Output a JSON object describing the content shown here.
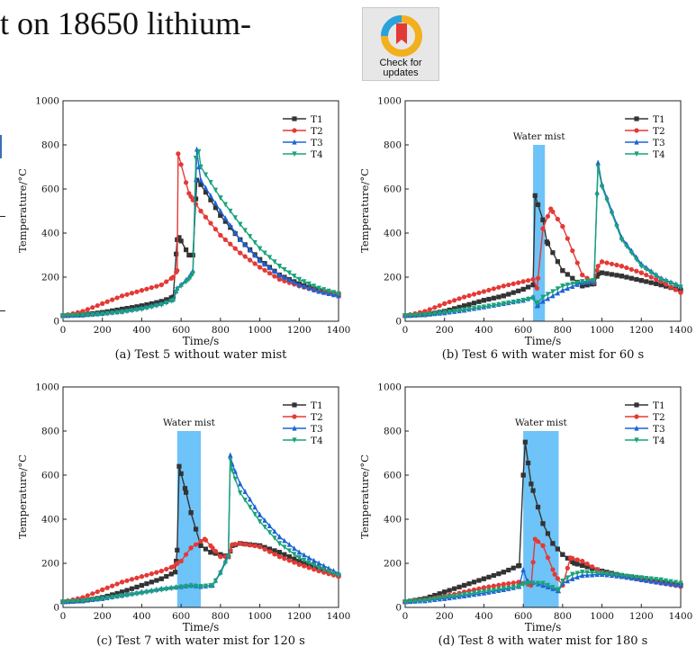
{
  "page": {
    "heading_fragment": "t on 18650 lithium-",
    "badge_line1": "Check for",
    "badge_line2": "updates",
    "left_edge_colors": [
      "#3b6fb6",
      "#222222"
    ]
  },
  "chart_data": [
    {
      "type": "line",
      "caption": "(a) Test 5 without water mist",
      "xlabel": "Time/s",
      "ylabel": "Temperature/°C",
      "xlim": [
        0,
        1400
      ],
      "ylim": [
        0,
        1000
      ],
      "xticks": [
        0,
        200,
        400,
        600,
        800,
        1000,
        1200,
        1400
      ],
      "yticks": [
        0,
        200,
        400,
        600,
        800,
        1000
      ],
      "mist": null,
      "legend": "top-right",
      "series": [
        {
          "name": "T1",
          "color": "#333333",
          "marker": "square",
          "x": [
            0,
            100,
            200,
            300,
            400,
            500,
            560,
            580,
            590,
            640,
            660,
            680,
            700,
            800,
            900,
            1000,
            1100,
            1200,
            1300,
            1400
          ],
          "y": [
            25,
            30,
            40,
            55,
            70,
            90,
            110,
            370,
            380,
            300,
            300,
            640,
            620,
            480,
            370,
            280,
            210,
            170,
            140,
            120
          ]
        },
        {
          "name": "T2",
          "color": "#e53935",
          "marker": "circle",
          "x": [
            0,
            100,
            200,
            300,
            400,
            500,
            560,
            580,
            585,
            640,
            660,
            700,
            800,
            900,
            1000,
            1100,
            1200,
            1300,
            1400
          ],
          "y": [
            25,
            45,
            80,
            115,
            140,
            165,
            200,
            230,
            760,
            580,
            550,
            500,
            390,
            310,
            245,
            190,
            160,
            135,
            120
          ]
        },
        {
          "name": "T3",
          "color": "#1e63d6",
          "marker": "triangle",
          "x": [
            0,
            100,
            200,
            300,
            400,
            500,
            560,
            580,
            640,
            660,
            680,
            690,
            700,
            800,
            900,
            1000,
            1100,
            1200,
            1300,
            1400
          ],
          "y": [
            25,
            28,
            35,
            45,
            60,
            80,
            100,
            150,
            200,
            230,
            780,
            700,
            640,
            500,
            370,
            275,
            210,
            165,
            135,
            115
          ]
        },
        {
          "name": "T4",
          "color": "#1aa37a",
          "marker": "down-triangle",
          "x": [
            0,
            100,
            200,
            300,
            400,
            500,
            560,
            580,
            640,
            660,
            675,
            690,
            700,
            800,
            900,
            1000,
            1100,
            1200,
            1300,
            1400
          ],
          "y": [
            25,
            28,
            33,
            42,
            55,
            75,
            95,
            145,
            190,
            215,
            740,
            770,
            700,
            560,
            440,
            330,
            250,
            190,
            150,
            125
          ]
        }
      ]
    },
    {
      "type": "line",
      "caption": "(b) Test 6 with water mist for 60 s",
      "xlabel": "Time/s",
      "ylabel": "Temperature/°C",
      "xlim": [
        0,
        1400
      ],
      "ylim": [
        0,
        1000
      ],
      "xticks": [
        0,
        200,
        400,
        600,
        800,
        1000,
        1200,
        1400
      ],
      "yticks": [
        0,
        200,
        400,
        600,
        800,
        1000
      ],
      "mist": {
        "start": 650,
        "end": 710,
        "label": "Water mist"
      },
      "legend": "top-right",
      "series": [
        {
          "name": "T1",
          "color": "#333333",
          "marker": "square",
          "x": [
            0,
            100,
            200,
            300,
            400,
            500,
            600,
            650,
            660,
            700,
            720,
            800,
            900,
            960,
            980,
            1000,
            1100,
            1200,
            1300,
            1400
          ],
          "y": [
            25,
            30,
            45,
            70,
            95,
            115,
            145,
            165,
            570,
            460,
            360,
            230,
            160,
            170,
            215,
            220,
            205,
            185,
            165,
            140
          ]
        },
        {
          "name": "T2",
          "color": "#e53935",
          "marker": "circle",
          "x": [
            0,
            100,
            200,
            300,
            400,
            500,
            600,
            650,
            670,
            700,
            740,
            800,
            900,
            960,
            980,
            1000,
            1100,
            1200,
            1300,
            1400
          ],
          "y": [
            25,
            45,
            80,
            110,
            135,
            160,
            180,
            190,
            150,
            420,
            510,
            430,
            210,
            175,
            250,
            270,
            250,
            220,
            180,
            130
          ]
        },
        {
          "name": "T3",
          "color": "#1e63d6",
          "marker": "triangle",
          "x": [
            0,
            100,
            200,
            300,
            400,
            500,
            600,
            650,
            670,
            700,
            800,
            900,
            960,
            980,
            1000,
            1100,
            1200,
            1300,
            1400
          ],
          "y": [
            25,
            30,
            38,
            50,
            65,
            80,
            95,
            110,
            70,
            90,
            140,
            175,
            180,
            720,
            620,
            380,
            260,
            195,
            160
          ]
        },
        {
          "name": "T4",
          "color": "#1aa37a",
          "marker": "down-triangle",
          "x": [
            0,
            100,
            200,
            300,
            400,
            500,
            600,
            650,
            670,
            700,
            800,
            900,
            960,
            980,
            1000,
            1100,
            1200,
            1300,
            1400
          ],
          "y": [
            25,
            30,
            40,
            52,
            65,
            80,
            95,
            105,
            80,
            110,
            160,
            180,
            185,
            700,
            610,
            370,
            250,
            190,
            155
          ]
        }
      ]
    },
    {
      "type": "line",
      "caption": "(c) Test 7 with water mist for 120 s",
      "xlabel": "Time/s",
      "ylabel": "Temperature/°C",
      "xlim": [
        0,
        1400
      ],
      "ylim": [
        0,
        1000
      ],
      "xticks": [
        0,
        200,
        400,
        600,
        800,
        1000,
        1200,
        1400
      ],
      "yticks": [
        0,
        200,
        400,
        600,
        800,
        1000
      ],
      "mist": {
        "start": 580,
        "end": 700,
        "label": "Water mist"
      },
      "legend": "top-right",
      "series": [
        {
          "name": "T1",
          "color": "#333333",
          "marker": "square",
          "x": [
            0,
            100,
            200,
            300,
            400,
            500,
            570,
            580,
            590,
            620,
            650,
            700,
            750,
            800,
            840,
            860,
            900,
            1000,
            1100,
            1200,
            1300,
            1400
          ],
          "y": [
            25,
            30,
            45,
            70,
            100,
            130,
            160,
            260,
            640,
            540,
            430,
            280,
            250,
            240,
            230,
            280,
            290,
            280,
            250,
            210,
            175,
            145
          ]
        },
        {
          "name": "T2",
          "color": "#e53935",
          "marker": "circle",
          "x": [
            0,
            100,
            200,
            300,
            400,
            500,
            560,
            580,
            600,
            650,
            700,
            720,
            760,
            800,
            840,
            860,
            900,
            1000,
            1100,
            1200,
            1300,
            1400
          ],
          "y": [
            25,
            45,
            80,
            115,
            140,
            165,
            185,
            200,
            210,
            270,
            300,
            310,
            270,
            230,
            230,
            285,
            290,
            275,
            230,
            195,
            165,
            140
          ]
        },
        {
          "name": "T3",
          "color": "#1e63d6",
          "marker": "triangle",
          "x": [
            0,
            100,
            200,
            300,
            400,
            500,
            600,
            650,
            700,
            760,
            800,
            840,
            850,
            860,
            900,
            1000,
            1100,
            1200,
            1300,
            1400
          ],
          "y": [
            25,
            30,
            40,
            55,
            70,
            85,
            95,
            100,
            95,
            100,
            160,
            240,
            690,
            650,
            560,
            420,
            320,
            250,
            200,
            155
          ]
        },
        {
          "name": "T4",
          "color": "#1aa37a",
          "marker": "down-triangle",
          "x": [
            0,
            100,
            200,
            300,
            400,
            500,
            600,
            650,
            700,
            760,
            800,
            840,
            850,
            860,
            900,
            1000,
            1100,
            1200,
            1300,
            1400
          ],
          "y": [
            25,
            30,
            40,
            52,
            65,
            80,
            92,
            98,
            95,
            100,
            155,
            230,
            670,
            620,
            520,
            390,
            290,
            225,
            180,
            145
          ]
        }
      ]
    },
    {
      "type": "line",
      "caption": "(d) Test 8 with water mist for 180 s",
      "xlabel": "Time/s",
      "ylabel": "Temperature/°C",
      "xlim": [
        0,
        1400
      ],
      "ylim": [
        0,
        1000
      ],
      "xticks": [
        0,
        200,
        400,
        600,
        800,
        1000,
        1200,
        1400
      ],
      "yticks": [
        0,
        200,
        400,
        600,
        800,
        1000
      ],
      "mist": {
        "start": 600,
        "end": 780,
        "label": "Water mist"
      },
      "legend": "top-right",
      "series": [
        {
          "name": "T1",
          "color": "#333333",
          "marker": "square",
          "x": [
            0,
            100,
            200,
            300,
            400,
            500,
            580,
            600,
            610,
            640,
            700,
            750,
            800,
            860,
            900,
            1000,
            1100,
            1200,
            1300,
            1400
          ],
          "y": [
            25,
            40,
            70,
            100,
            130,
            160,
            190,
            600,
            750,
            560,
            380,
            290,
            240,
            200,
            190,
            165,
            145,
            130,
            115,
            100
          ]
        },
        {
          "name": "T2",
          "color": "#e53935",
          "marker": "circle",
          "x": [
            0,
            100,
            200,
            300,
            400,
            500,
            580,
            600,
            640,
            660,
            700,
            760,
            800,
            840,
            900,
            1000,
            1100,
            1200,
            1300,
            1400
          ],
          "y": [
            25,
            35,
            50,
            70,
            90,
            105,
            115,
            110,
            100,
            310,
            280,
            150,
            100,
            225,
            210,
            160,
            140,
            125,
            110,
            95
          ]
        },
        {
          "name": "T3",
          "color": "#1e63d6",
          "marker": "triangle",
          "x": [
            0,
            100,
            200,
            300,
            400,
            500,
            580,
            600,
            620,
            700,
            780,
            800,
            850,
            900,
            1000,
            1100,
            1200,
            1300,
            1400
          ],
          "y": [
            25,
            30,
            40,
            52,
            65,
            80,
            95,
            170,
            120,
            100,
            75,
            110,
            130,
            145,
            150,
            140,
            125,
            112,
            100
          ]
        },
        {
          "name": "T4",
          "color": "#1aa37a",
          "marker": "down-triangle",
          "x": [
            0,
            100,
            200,
            300,
            400,
            500,
            580,
            600,
            620,
            700,
            780,
            800,
            850,
            900,
            1000,
            1100,
            1200,
            1300,
            1400
          ],
          "y": [
            25,
            32,
            45,
            58,
            72,
            85,
            95,
            105,
            110,
            110,
            80,
            120,
            150,
            160,
            155,
            145,
            135,
            125,
            110
          ]
        }
      ]
    }
  ]
}
